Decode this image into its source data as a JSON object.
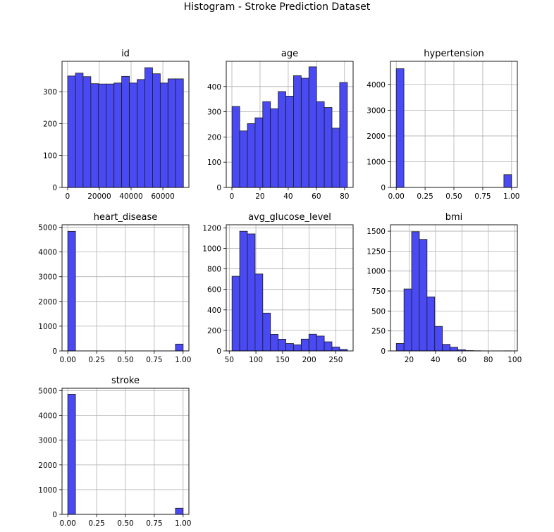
{
  "figure": {
    "title": "Histogram - Stroke Prediction Dataset"
  },
  "colors": {
    "bar_fill": "#4a4af4",
    "bar_edge": "#1a1a1a",
    "grid": "#b0b0b0",
    "axis": "#000000"
  },
  "chart_data": [
    {
      "type": "bar",
      "title": "id",
      "bin_range": [
        67,
        72940
      ],
      "xlim": [
        -3500,
        76400
      ],
      "ylim": [
        0,
        395
      ],
      "xticks": [
        0,
        20000,
        40000,
        60000
      ],
      "xtick_labels": [
        "0",
        "20000",
        "40000",
        "60000"
      ],
      "yticks": [
        0,
        100,
        200,
        300
      ],
      "ytick_labels": [
        "0",
        "100",
        "200",
        "300"
      ],
      "grid": true,
      "values": [
        349,
        358,
        347,
        325,
        324,
        324,
        327,
        348,
        327,
        338,
        375,
        356,
        327,
        340,
        340
      ]
    },
    {
      "type": "bar",
      "title": "age",
      "bin_range": [
        0.08,
        82
      ],
      "xlim": [
        -4,
        86.1
      ],
      "ylim": [
        0,
        500
      ],
      "xticks": [
        0,
        20,
        40,
        60,
        80
      ],
      "xtick_labels": [
        "0",
        "20",
        "40",
        "60",
        "80"
      ],
      "yticks": [
        0,
        100,
        200,
        300,
        400
      ],
      "ytick_labels": [
        "0",
        "100",
        "200",
        "300",
        "400"
      ],
      "grid": true,
      "values": [
        321,
        224,
        253,
        276,
        340,
        312,
        380,
        362,
        443,
        433,
        478,
        340,
        317,
        235,
        416
      ]
    },
    {
      "type": "bar",
      "title": "hypertension",
      "bin_range": [
        0,
        1
      ],
      "xlim": [
        -0.05,
        1.05
      ],
      "ylim": [
        0,
        4900
      ],
      "xticks": [
        0,
        0.25,
        0.5,
        0.75,
        1
      ],
      "xtick_labels": [
        "0.00",
        "0.25",
        "0.50",
        "0.75",
        "1.00"
      ],
      "yticks": [
        0,
        1000,
        2000,
        3000,
        4000
      ],
      "ytick_labels": [
        "0",
        "1000",
        "2000",
        "3000",
        "4000"
      ],
      "grid": true,
      "values": [
        4612,
        0,
        0,
        0,
        0,
        0,
        0,
        0,
        0,
        0,
        0,
        0,
        0,
        0,
        498
      ]
    },
    {
      "type": "bar",
      "title": "heart_disease",
      "bin_range": [
        0,
        1
      ],
      "xlim": [
        -0.05,
        1.05
      ],
      "ylim": [
        0,
        5100
      ],
      "xticks": [
        0,
        0.25,
        0.5,
        0.75,
        1
      ],
      "xtick_labels": [
        "0.00",
        "0.25",
        "0.50",
        "0.75",
        "1.00"
      ],
      "yticks": [
        0,
        1000,
        2000,
        3000,
        4000,
        5000
      ],
      "ytick_labels": [
        "0",
        "1000",
        "2000",
        "3000",
        "4000",
        "5000"
      ],
      "grid": true,
      "values": [
        4834,
        0,
        0,
        0,
        0,
        0,
        0,
        0,
        0,
        0,
        0,
        0,
        0,
        0,
        276
      ]
    },
    {
      "type": "bar",
      "title": "avg_glucose_level",
      "bin_range": [
        55.12,
        271.74
      ],
      "xlim": [
        44.3,
        282.6
      ],
      "ylim": [
        0,
        1230
      ],
      "xticks": [
        50,
        100,
        150,
        200,
        250
      ],
      "xtick_labels": [
        "50",
        "100",
        "150",
        "200",
        "250"
      ],
      "yticks": [
        0,
        200,
        400,
        600,
        800,
        1000,
        1200
      ],
      "ytick_labels": [
        "0",
        "200",
        "400",
        "600",
        "800",
        "1000",
        "1200"
      ],
      "grid": true,
      "values": [
        728,
        1167,
        1141,
        750,
        369,
        162,
        114,
        72,
        60,
        115,
        163,
        145,
        89,
        38,
        15
      ]
    },
    {
      "type": "bar",
      "title": "bmi",
      "bin_range": [
        10.3,
        97.6
      ],
      "xlim": [
        5.9,
        102
      ],
      "ylim": [
        0,
        1580
      ],
      "xticks": [
        20,
        40,
        60,
        80,
        100
      ],
      "xtick_labels": [
        "20",
        "40",
        "60",
        "80",
        "100"
      ],
      "yticks": [
        0,
        250,
        500,
        750,
        1000,
        1250,
        1500
      ],
      "ytick_labels": [
        "0",
        "250",
        "500",
        "750",
        "1000",
        "1250",
        "1500"
      ],
      "grid": true,
      "values": [
        93,
        776,
        1493,
        1397,
        677,
        307,
        82,
        46,
        15,
        4,
        2,
        0,
        0,
        0,
        1
      ]
    },
    {
      "type": "bar",
      "title": "stroke",
      "bin_range": [
        0,
        1
      ],
      "xlim": [
        -0.05,
        1.05
      ],
      "ylim": [
        0,
        5100
      ],
      "xticks": [
        0,
        0.25,
        0.5,
        0.75,
        1
      ],
      "xtick_labels": [
        "0.00",
        "0.25",
        "0.50",
        "0.75",
        "1.00"
      ],
      "yticks": [
        0,
        1000,
        2000,
        3000,
        4000,
        5000
      ],
      "ytick_labels": [
        "0",
        "1000",
        "2000",
        "3000",
        "4000",
        "5000"
      ],
      "grid": true,
      "values": [
        4861,
        0,
        0,
        0,
        0,
        0,
        0,
        0,
        0,
        0,
        0,
        0,
        0,
        0,
        249
      ]
    }
  ]
}
